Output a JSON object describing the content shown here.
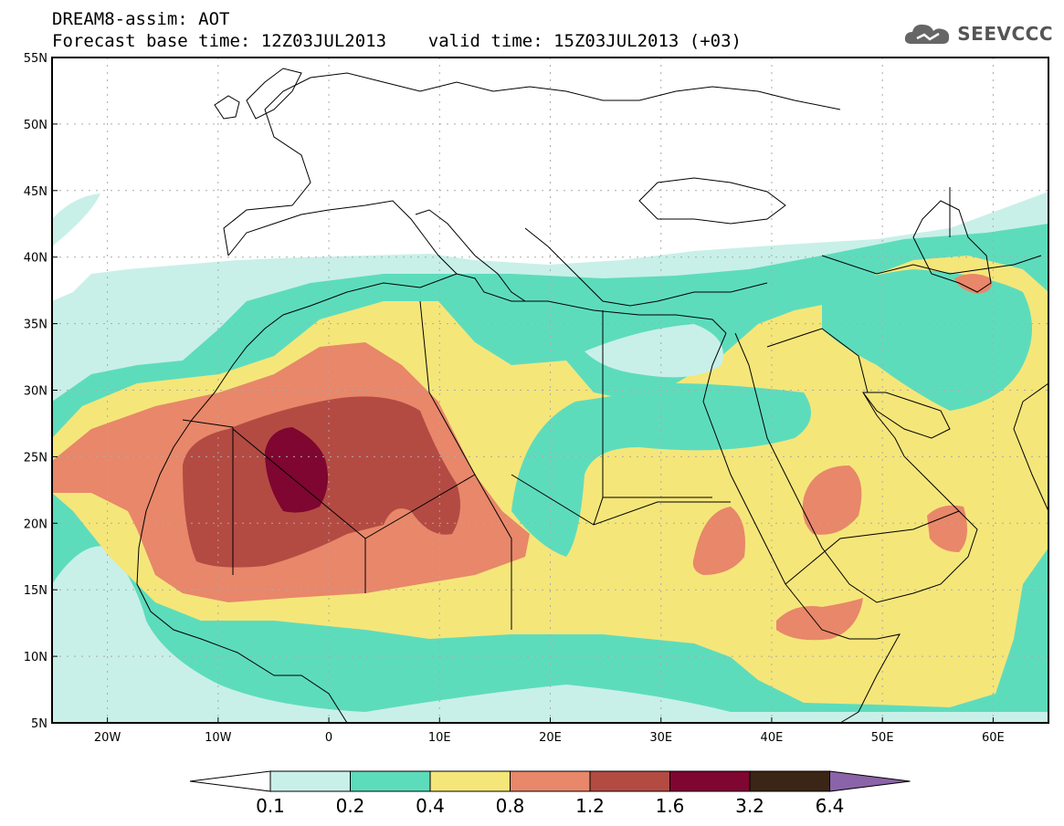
{
  "header": {
    "line1": "DREAM8-assim: AOT",
    "line2": "Forecast base time: 12Z03JUL2013    valid time: 15Z03JUL2013 (+03)"
  },
  "logo": {
    "text": "SEEVCCC",
    "icon": "cloud-icon"
  },
  "map": {
    "variable": "AOT",
    "lat_range": [
      5,
      55
    ],
    "lon_range": [
      -25,
      65
    ],
    "lat_ticks": [
      "5N",
      "10N",
      "15N",
      "20N",
      "25N",
      "30N",
      "35N",
      "40N",
      "45N",
      "50N",
      "55N"
    ],
    "lon_ticks": [
      "20W",
      "10W",
      "0",
      "10E",
      "20E",
      "30E",
      "40E",
      "50E",
      "60E"
    ],
    "gridlines": "dotted"
  },
  "colorbar": {
    "levels": [
      "0.1",
      "0.2",
      "0.4",
      "0.8",
      "1.2",
      "1.6",
      "3.2",
      "6.4"
    ],
    "colors": [
      "#ffffff",
      "#c8f0e8",
      "#5ddcbc",
      "#f5e67a",
      "#e8876a",
      "#b34b43",
      "#7e0630",
      "#3b2516",
      "#8b63a8"
    ]
  }
}
